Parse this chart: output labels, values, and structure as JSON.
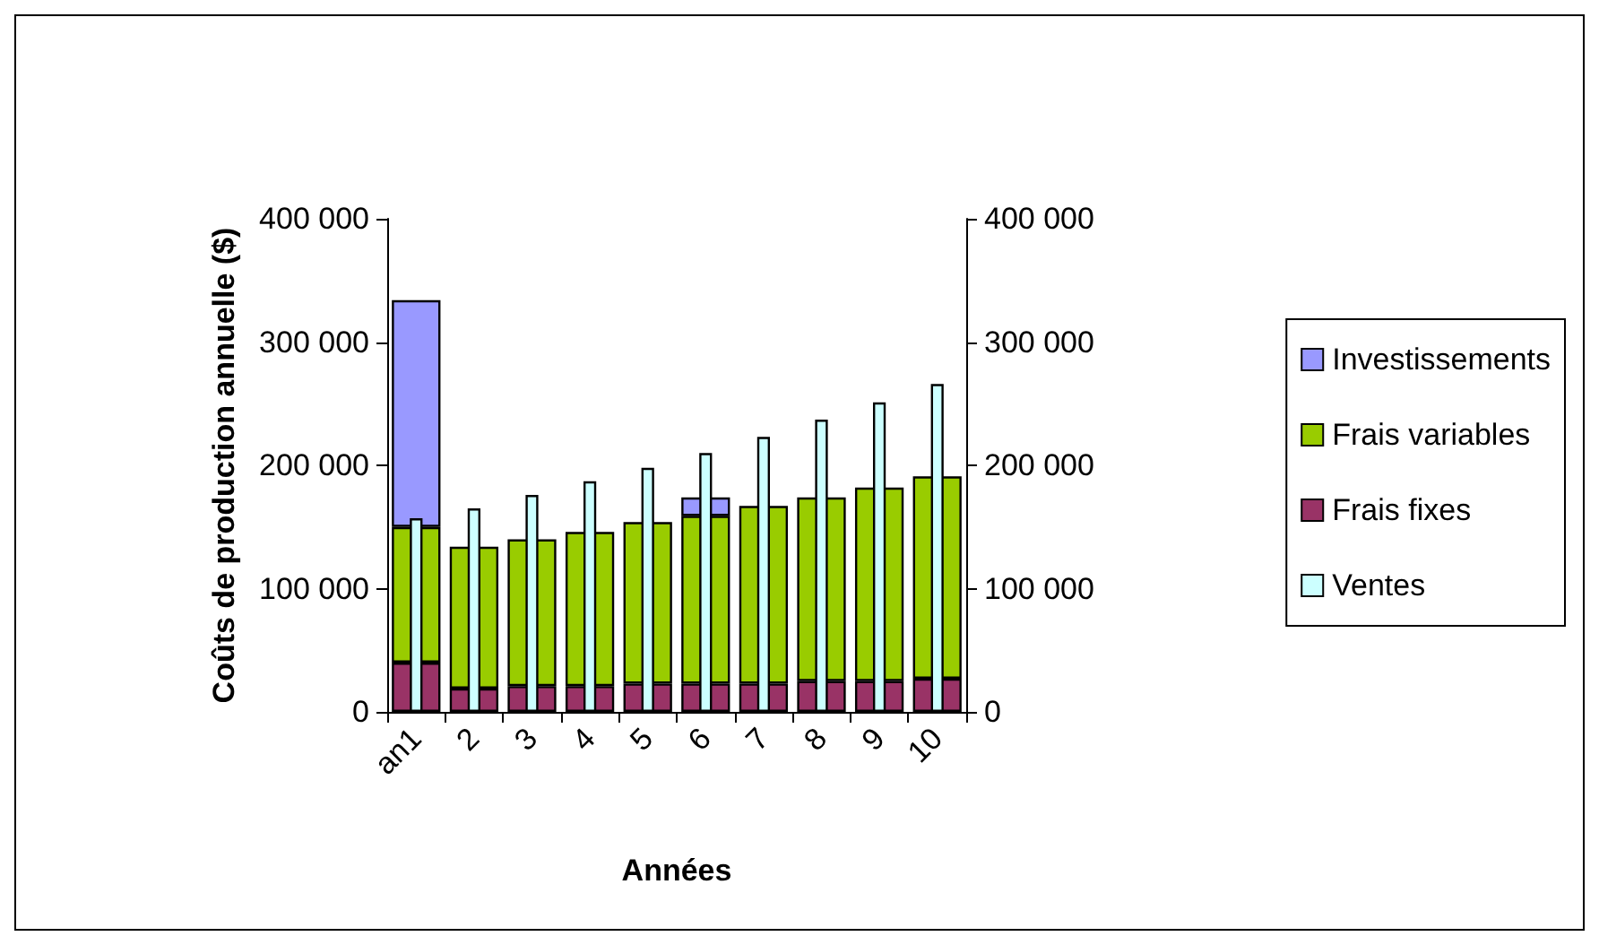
{
  "chart_data": {
    "type": "bar",
    "stacked": true,
    "xlabel": "Années",
    "ylabel": "Coûts de production annuelle ($)",
    "categories": [
      "an1",
      "2",
      "3",
      "4",
      "5",
      "6",
      "7",
      "8",
      "9",
      "10"
    ],
    "series": [
      {
        "name": "Frais fixes",
        "color": "#993366",
        "values": [
          40000,
          19000,
          21000,
          21000,
          23000,
          23000,
          23000,
          25000,
          25000,
          27000
        ]
      },
      {
        "name": "Frais variables",
        "color": "#99cc00",
        "values": [
          110000,
          115000,
          119000,
          125000,
          131000,
          136000,
          144000,
          149000,
          157000,
          164000
        ]
      },
      {
        "name": "Investissements",
        "color": "#9999ff",
        "values": [
          184000,
          null,
          null,
          null,
          null,
          15000,
          null,
          null,
          null,
          null
        ]
      },
      {
        "name": "Ventes",
        "color": "#ccffff",
        "axis": "y2",
        "values": [
          157000,
          165000,
          176000,
          187000,
          198000,
          210000,
          223000,
          237000,
          251000,
          266000
        ]
      }
    ],
    "ylim": [
      0,
      400000
    ],
    "yticks": [
      {
        "value": 0,
        "label": "0"
      },
      {
        "value": 100000,
        "label": "100 000"
      },
      {
        "value": 200000,
        "label": "200 000"
      },
      {
        "value": 300000,
        "label": "300 000"
      },
      {
        "value": 400000,
        "label": "400 000"
      }
    ],
    "y2lim": [
      0,
      400000
    ],
    "y2ticks": [
      {
        "value": 0,
        "label": "0"
      },
      {
        "value": 100000,
        "label": "100 000"
      },
      {
        "value": 200000,
        "label": "200 000"
      },
      {
        "value": 300000,
        "label": "300 000"
      },
      {
        "value": 400000,
        "label": "400 000"
      }
    ],
    "grid": false,
    "legend": "right"
  }
}
